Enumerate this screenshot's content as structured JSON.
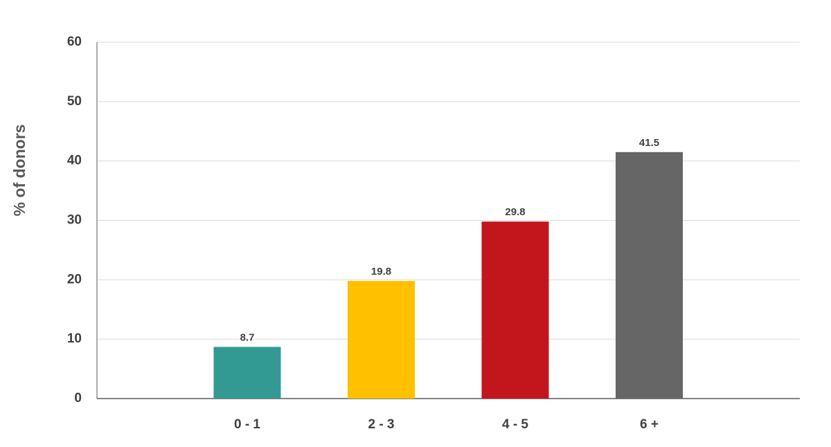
{
  "chart_data": {
    "type": "bar",
    "y_label": "% of donors",
    "categories": [
      "0 - 1",
      "2 - 3",
      "4 - 5",
      "6 +"
    ],
    "values": [
      8.7,
      19.8,
      29.8,
      41.5
    ],
    "colors": [
      "#339a93",
      "#ffc000",
      "#c3161c",
      "#666666"
    ],
    "ylim": [
      0,
      60
    ],
    "yticks": [
      0,
      10,
      20,
      30,
      40,
      50,
      60
    ],
    "grid": true
  }
}
